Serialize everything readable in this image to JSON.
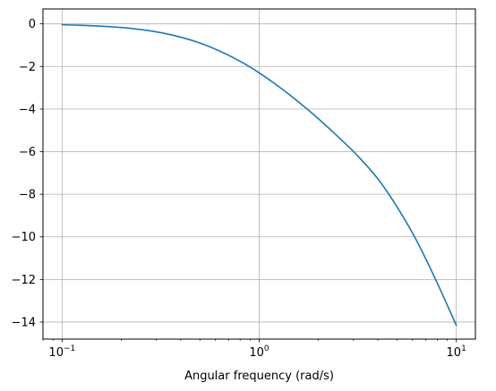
{
  "chart_data": {
    "type": "line",
    "title": "",
    "xlabel": "Angular frequency (rad/s)",
    "ylabel": "",
    "xscale": "log",
    "xlim": [
      0.08,
      12.5
    ],
    "ylim": [
      -14.8,
      0.7
    ],
    "grid": true,
    "legend": "none",
    "x_ticks": [
      {
        "value": 0.1,
        "base": "10",
        "exp": "−1"
      },
      {
        "value": 1,
        "base": "10",
        "exp": "0"
      },
      {
        "value": 10,
        "base": "10",
        "exp": "1"
      }
    ],
    "y_ticks": [
      {
        "value": 0,
        "label": "0"
      },
      {
        "value": -2,
        "label": "−2"
      },
      {
        "value": -4,
        "label": "−4"
      },
      {
        "value": -6,
        "label": "−6"
      },
      {
        "value": -8,
        "label": "−8"
      },
      {
        "value": -10,
        "label": "−10"
      },
      {
        "value": -12,
        "label": "−12"
      },
      {
        "value": -14,
        "label": "−14"
      }
    ],
    "series": [
      {
        "color": "#1f77b4",
        "x": [
          0.1,
          0.126,
          0.158,
          0.2,
          0.251,
          0.316,
          0.398,
          0.501,
          0.631,
          0.794,
          1.0,
          1.259,
          1.585,
          1.995,
          2.512,
          3.162,
          3.981,
          5.012,
          6.31,
          7.943,
          10.0
        ],
        "y": [
          -0.04,
          -0.07,
          -0.11,
          -0.17,
          -0.27,
          -0.41,
          -0.62,
          -0.9,
          -1.28,
          -1.74,
          -2.3,
          -2.95,
          -3.67,
          -4.45,
          -5.3,
          -6.2,
          -7.25,
          -8.6,
          -10.2,
          -12.1,
          -14.15
        ]
      }
    ]
  },
  "colors": {
    "line": "#1f77b4",
    "grid": "#b0b0b0",
    "axes": "#000000"
  }
}
